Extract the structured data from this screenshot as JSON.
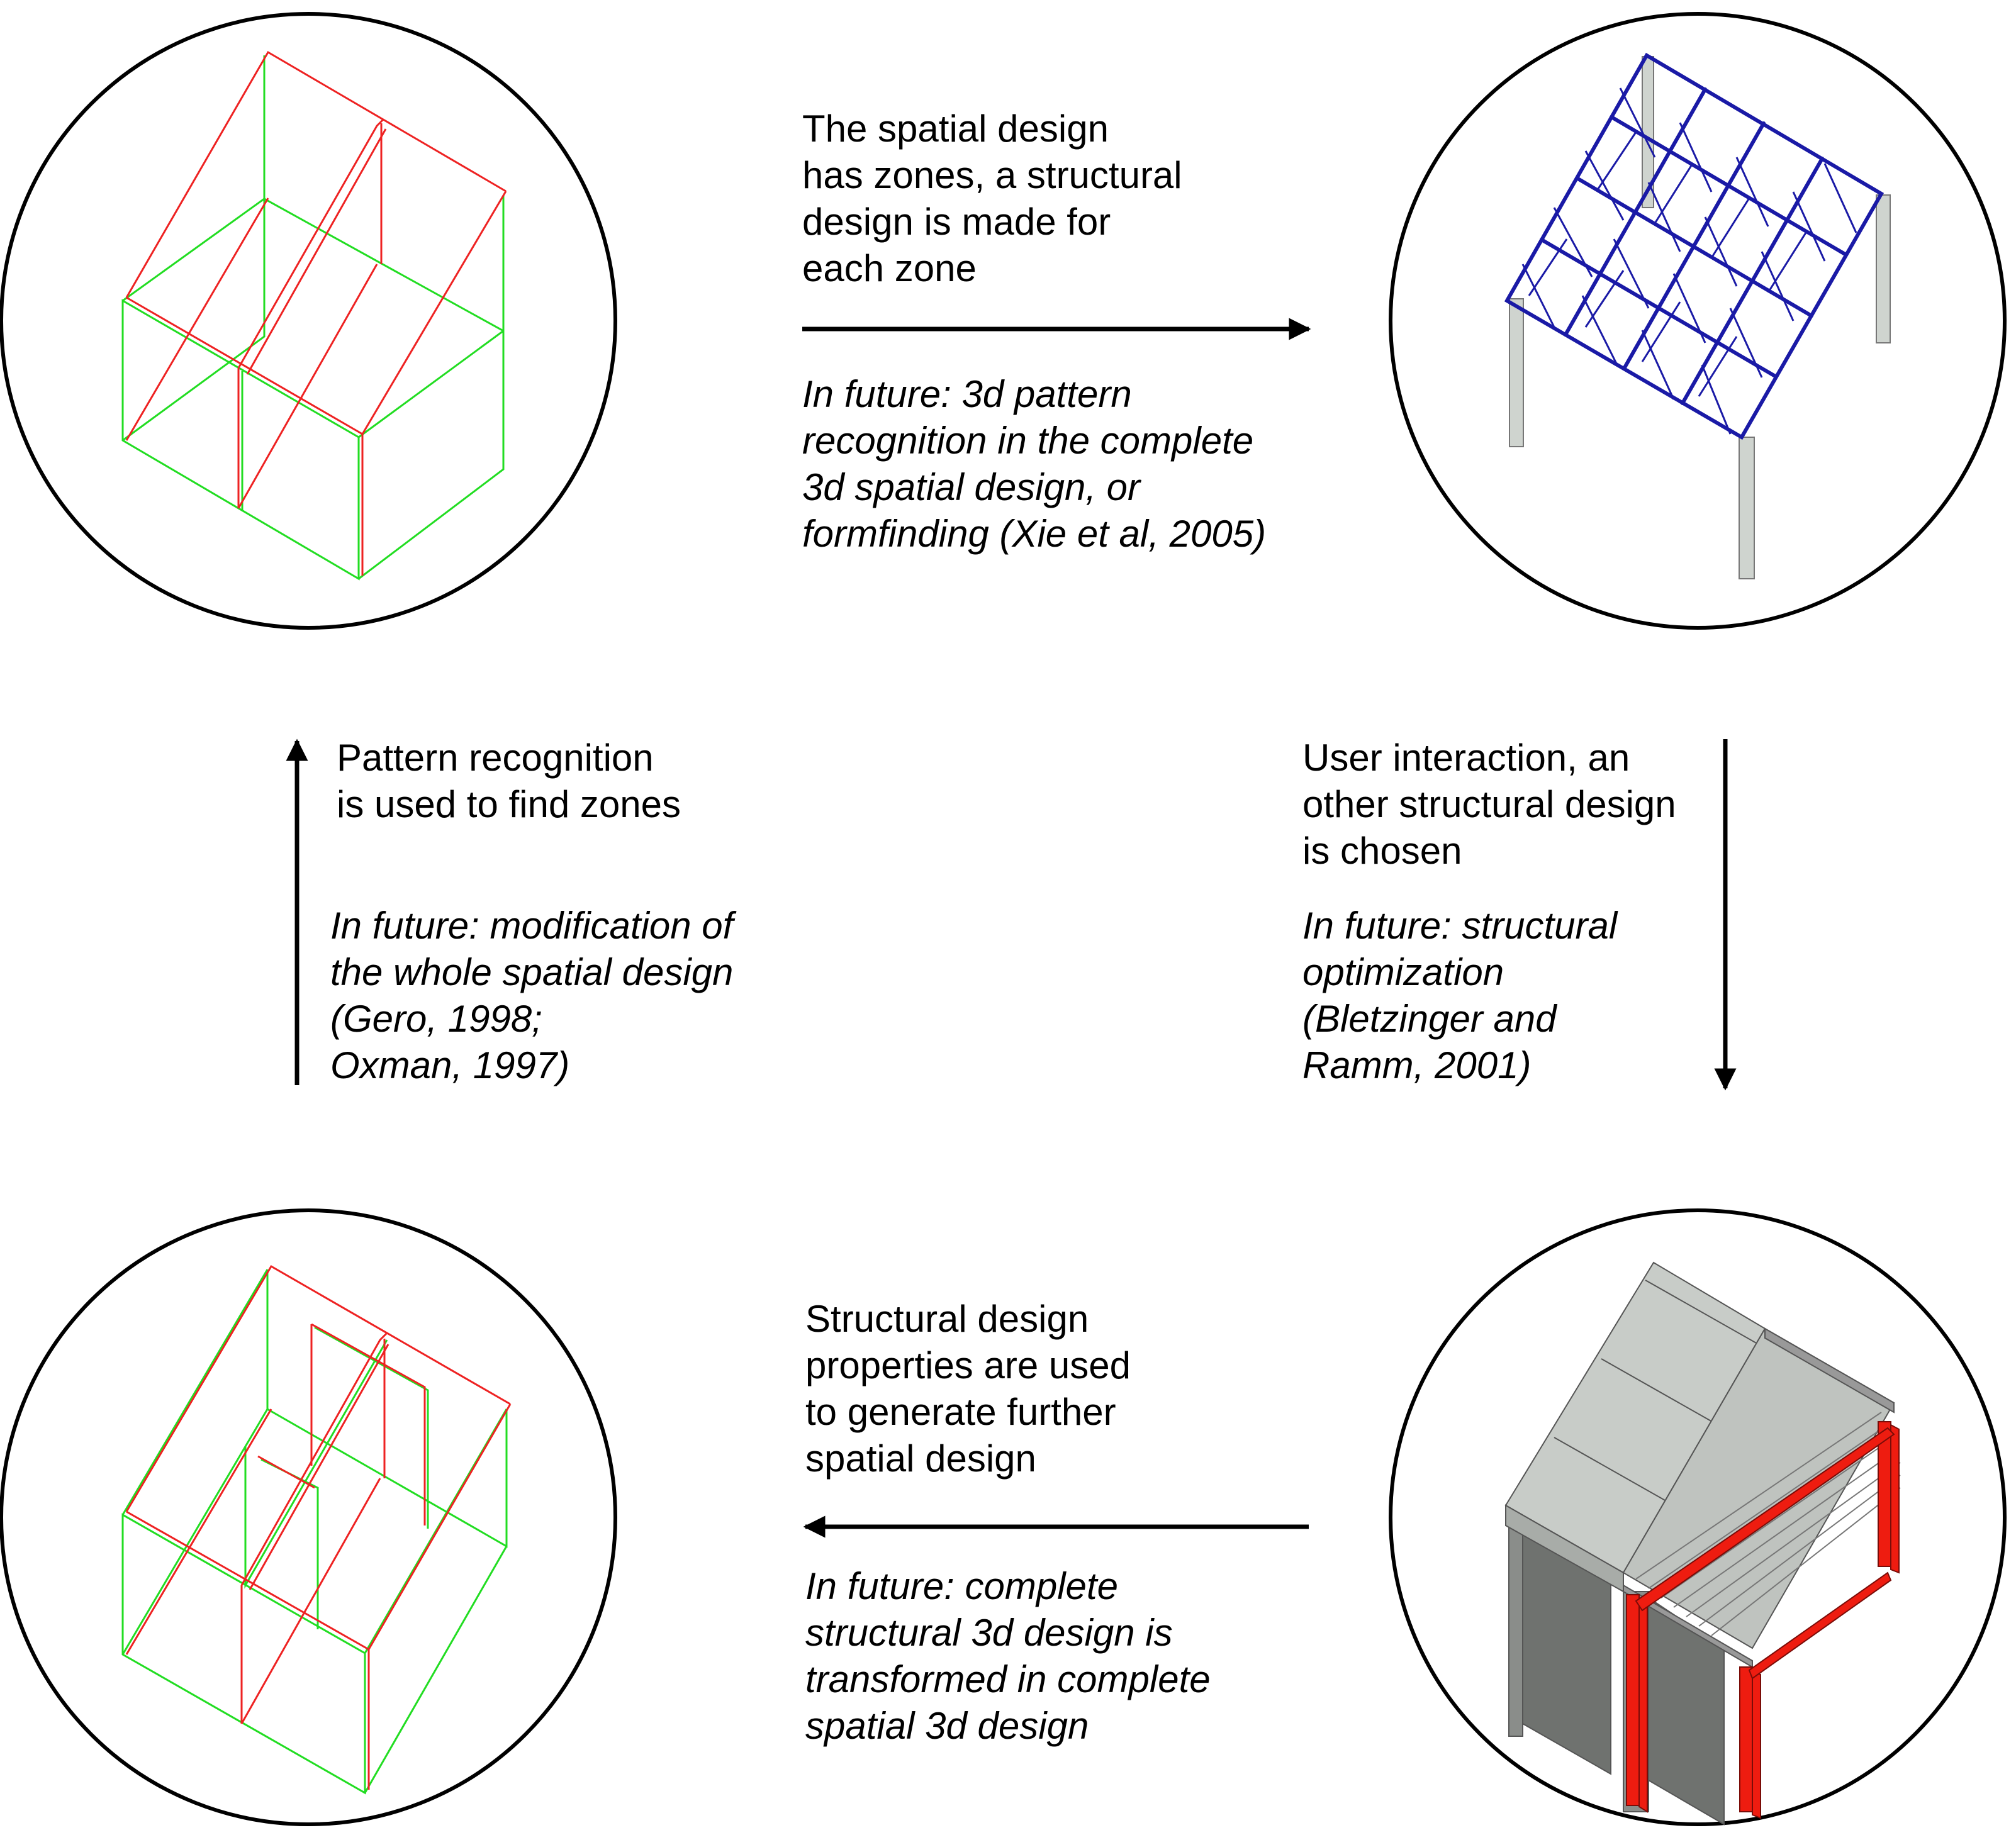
{
  "colors": {
    "background": "#ffffff",
    "ink": "#000000",
    "spatial_red": "#ee2222",
    "spatial_green": "#22dd22",
    "truss_blue": "#1a1aa6",
    "concrete_grey": "#c8ccc8",
    "steel_red": "#ee1c10"
  },
  "top": {
    "main": [
      "The spatial design",
      "has zones, a structural",
      "design is made for",
      "each zone"
    ],
    "future": [
      "In future: 3d pattern",
      "recognition in the complete",
      "3d spatial design, or",
      "formfinding (Xie et al, 2005)"
    ]
  },
  "left": {
    "main": [
      "Pattern recognition",
      "is used to find zones"
    ],
    "future": [
      "In future: modification of",
      "the whole spatial design",
      "(Gero, 1998;",
      "Oxman, 1997)"
    ]
  },
  "right": {
    "main": [
      "User interaction, an",
      "other structural design",
      "is chosen"
    ],
    "future": [
      "In future: structural",
      "optimization",
      "(Bletzinger and",
      "Ramm, 2001)"
    ]
  },
  "bottom": {
    "main": [
      "Structural design",
      "properties are used",
      "to generate further",
      "spatial design"
    ],
    "future": [
      "In future: complete",
      "structural 3d design is",
      "transformed in complete",
      "spatial 3d design"
    ]
  }
}
